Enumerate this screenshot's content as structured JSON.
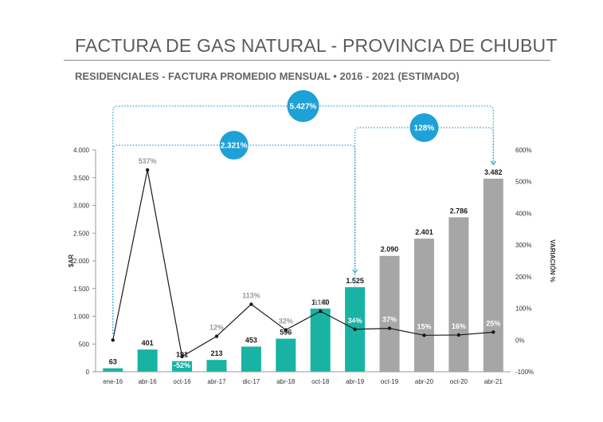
{
  "title": "FACTURA DE GAS NATURAL - PROVINCIA DE CHUBUT",
  "subtitle": "RESIDENCIALES - FACTURA PROMEDIO MENSUAL • 2016 - 2021 (ESTIMADO)",
  "colors": {
    "bar_actual": "#18b3a3",
    "bar_estimated": "#a6a6a6",
    "line": "#1a1a1a",
    "bubble": "#1ea1d6",
    "bracket": "#2aa0d6",
    "pct_positive": "#999999",
    "pct_on_bar": "#ffffff"
  },
  "chart_data": {
    "type": "bar",
    "categories": [
      "ene-16",
      "abr-16",
      "oct-16",
      "abr-17",
      "dic-17",
      "abr-18",
      "oct-18",
      "abr-19",
      "oct-19",
      "abr-20",
      "oct-20",
      "abr-21"
    ],
    "series": [
      {
        "type": "bar",
        "axis": "left",
        "values": [
          63,
          401,
          191,
          213,
          453,
          596,
          1140,
          1525,
          2090,
          2401,
          2786,
          3482
        ],
        "labels": [
          "63",
          "401",
          "191",
          "213",
          "453",
          "596",
          "1.140",
          "1.525",
          "2.090",
          "2.401",
          "2.786",
          "3.482"
        ],
        "estimated": [
          false,
          false,
          false,
          false,
          false,
          false,
          false,
          false,
          true,
          true,
          true,
          true
        ]
      },
      {
        "type": "line",
        "axis": "right",
        "values": [
          0,
          537,
          -52,
          12,
          113,
          32,
          91,
          34,
          37,
          15,
          16,
          25
        ],
        "labels": [
          "",
          "537%",
          "-52%",
          "12%",
          "113%",
          "32%",
          "91%",
          "34%",
          "37%",
          "15%",
          "16%",
          "25%"
        ]
      }
    ],
    "ylabel": "$AR",
    "y2label": "VARIACIÓN %",
    "ylim": [
      0,
      4000
    ],
    "yticks": [
      0,
      500,
      1000,
      1500,
      2000,
      2500,
      3000,
      3500,
      4000
    ],
    "ytick_labels": [
      "0",
      "500",
      "1.000",
      "1.500",
      "2.000",
      "2.500",
      "3.000",
      "3.500",
      "4.000"
    ],
    "y2lim": [
      -100,
      600
    ],
    "y2ticks": [
      -100,
      0,
      100,
      200,
      300,
      400,
      500,
      600
    ],
    "y2tick_labels": [
      "-100%",
      "0%",
      "100%",
      "200%",
      "300%",
      "400%",
      "500%",
      "600%"
    ],
    "annotations": [
      {
        "label": "5.427%",
        "from": 0,
        "to": 11
      },
      {
        "label": "2.321%",
        "from": 0,
        "to": 7
      },
      {
        "label": "128%",
        "from": 7,
        "to": 11
      }
    ]
  }
}
